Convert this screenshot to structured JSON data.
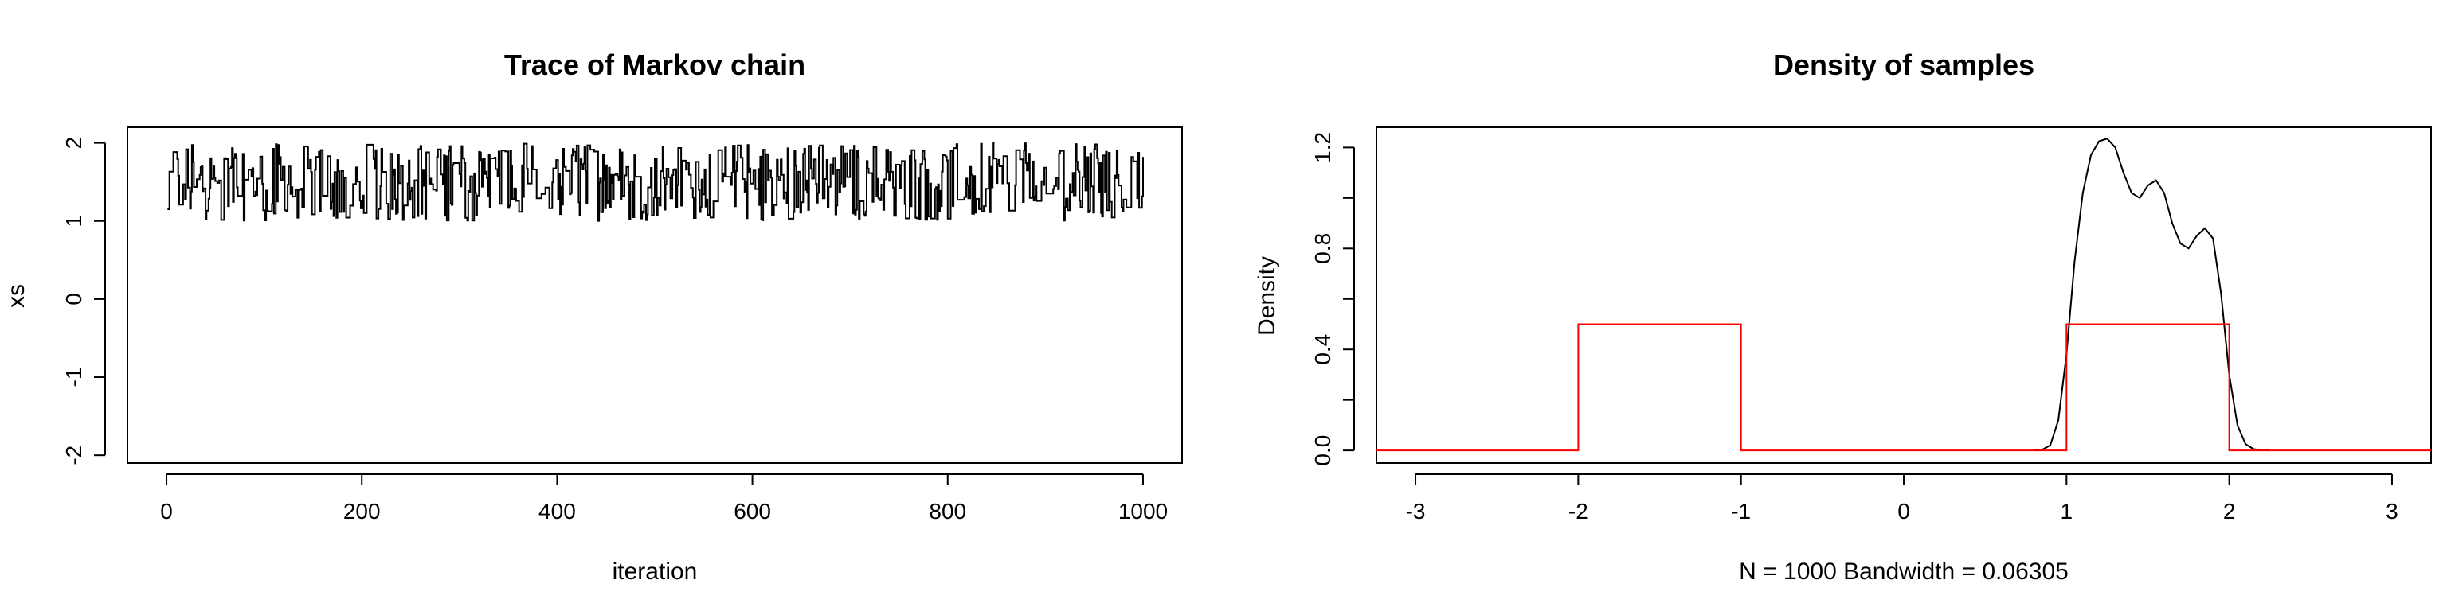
{
  "chart_data": [
    {
      "type": "line",
      "title": "Trace of Markov chain",
      "xlabel": "iteration",
      "ylabel": "xs",
      "xlim": [
        -40,
        1040
      ],
      "ylim": [
        -2.1,
        2.2
      ],
      "xticks": [
        0,
        200,
        400,
        600,
        800,
        1000
      ],
      "yticks": [
        -2,
        -1,
        0,
        1,
        2
      ],
      "xtick_labels": [
        "0",
        "200",
        "400",
        "600",
        "800",
        "1000"
      ],
      "ytick_labels": [
        "-2",
        "-1",
        "0",
        "1",
        "2"
      ],
      "grid": false,
      "line_color": "#000000",
      "trace": {
        "n": 1000,
        "start": 1.15,
        "min": 1.0,
        "max": 2.0,
        "mean": 1.5
      }
    },
    {
      "type": "line",
      "title": "Density of samples",
      "xlabel": "N = 1000   Bandwidth = 0.06305",
      "ylabel": "Density",
      "xlim": [
        -3.24,
        3.24
      ],
      "ylim": [
        -0.05,
        1.28
      ],
      "xticks": [
        -3,
        -2,
        -1,
        0,
        1,
        2,
        3
      ],
      "yticks": [
        0.0,
        0.4,
        0.8,
        1.2
      ],
      "minor_yticks": [
        0.2,
        0.6,
        1.0
      ],
      "xtick_labels": [
        "-3",
        "-2",
        "-1",
        "0",
        "1",
        "2",
        "3"
      ],
      "ytick_labels": [
        "0.0",
        "0.4",
        "0.8",
        "1.2"
      ],
      "grid": false,
      "series": [
        {
          "color": "#000000",
          "x": [
            0.8,
            0.85,
            0.9,
            0.95,
            1.0,
            1.05,
            1.1,
            1.15,
            1.2,
            1.25,
            1.3,
            1.35,
            1.4,
            1.45,
            1.5,
            1.55,
            1.6,
            1.65,
            1.7,
            1.75,
            1.8,
            1.85,
            1.9,
            1.95,
            2.0,
            2.05,
            2.1,
            2.15,
            2.2,
            2.25
          ],
          "y": [
            0.0,
            0.003,
            0.02,
            0.12,
            0.38,
            0.75,
            1.02,
            1.17,
            1.225,
            1.235,
            1.2,
            1.1,
            1.02,
            1.0,
            1.05,
            1.07,
            1.02,
            0.9,
            0.82,
            0.8,
            0.85,
            0.88,
            0.84,
            0.62,
            0.3,
            0.1,
            0.025,
            0.005,
            0.001,
            0.0
          ]
        },
        {
          "color": "#ff0000",
          "x": [
            -3.24,
            -2,
            -2,
            -1,
            -1,
            1,
            1,
            2,
            2,
            3.24
          ],
          "y": [
            0,
            0,
            0.5,
            0.5,
            0,
            0,
            0.5,
            0.5,
            0,
            0
          ]
        }
      ]
    }
  ]
}
